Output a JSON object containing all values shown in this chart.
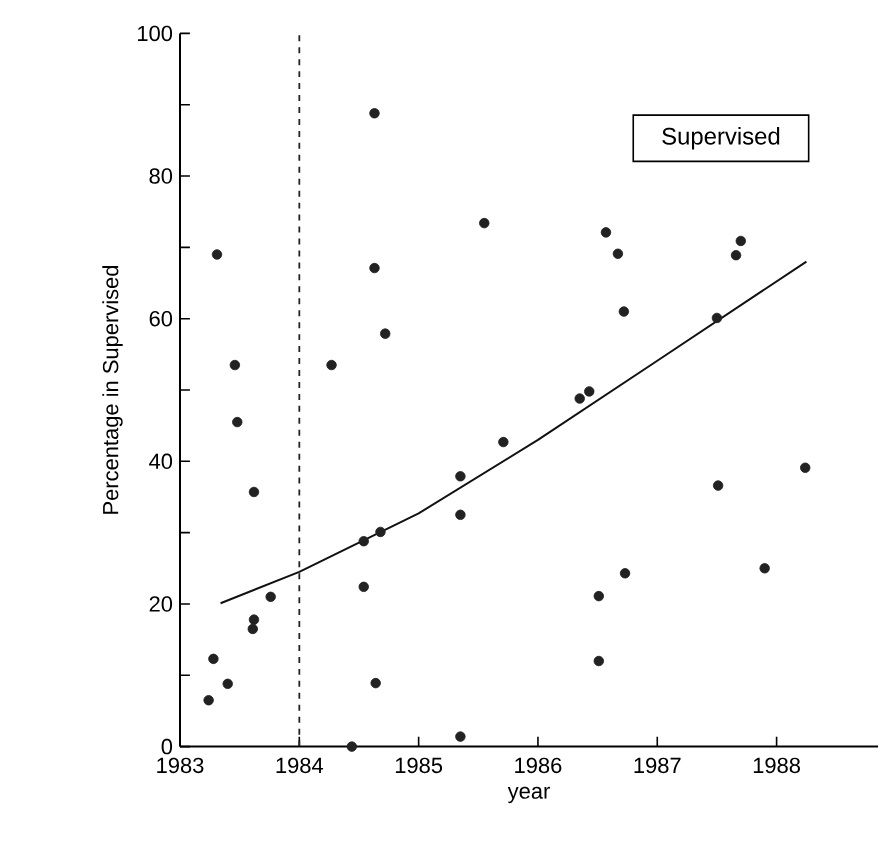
{
  "chart_data": {
    "type": "scatter",
    "xlabel": "year",
    "ylabel": "Percentage in Supervised",
    "annotations": [
      "Supervised"
    ],
    "xlim": [
      1983,
      1988.85
    ],
    "ylim": [
      0,
      100
    ],
    "xticks": [
      1983,
      1984,
      1985,
      1986,
      1987,
      1988
    ],
    "yticks": [
      0,
      {
        "value": 10,
        "label": null
      },
      20,
      {
        "value": 30,
        "label": null
      },
      40,
      {
        "value": 50,
        "label": null
      },
      60,
      {
        "value": 70,
        "label": null
      },
      80,
      {
        "value": 90,
        "label": null
      },
      100
    ],
    "ref_lines": [
      {
        "axis": "x",
        "value": 1984,
        "line_style": "dashed",
        "color": "#222222"
      }
    ],
    "series": [
      {
        "color": "#222222",
        "marker": "circle",
        "x": [
          1983.31,
          1983.46,
          1983.48,
          1983.62,
          1983.76,
          1983.62,
          1983.61,
          1983.28,
          1983.4,
          1983.24,
          1984.63,
          1984.63,
          1984.72,
          1984.27,
          1984.54,
          1984.68,
          1984.54,
          1984.64,
          1984.44,
          1985.35,
          1985.35,
          1985.35,
          1985.55,
          1985.71,
          1986.35,
          1986.43,
          1986.57,
          1986.67,
          1986.72,
          1986.73,
          1986.51,
          1986.51,
          1987.5,
          1987.66,
          1987.7,
          1987.51,
          1987.9,
          1988.24
        ],
        "values": [
          69.0,
          53.5,
          45.5,
          35.7,
          21.0,
          17.8,
          16.5,
          12.3,
          8.8,
          6.5,
          88.8,
          67.1,
          57.9,
          53.5,
          28.8,
          30.1,
          22.4,
          8.9,
          0,
          37.9,
          32.5,
          1.4,
          73.4,
          42.7,
          48.8,
          49.8,
          72.1,
          69.1,
          61.0,
          24.3,
          21.1,
          12.0,
          60.1,
          68.9,
          70.9,
          36.6,
          25.0,
          39.1
        ]
      },
      {
        "type": "line",
        "color": "#111111",
        "line_style": "solid",
        "x": [
          1983.34,
          1984,
          1985,
          1986,
          1987,
          1988.25
        ],
        "values": [
          20.1,
          24.5,
          32.7,
          43.0,
          54.1,
          68.0
        ]
      }
    ]
  }
}
